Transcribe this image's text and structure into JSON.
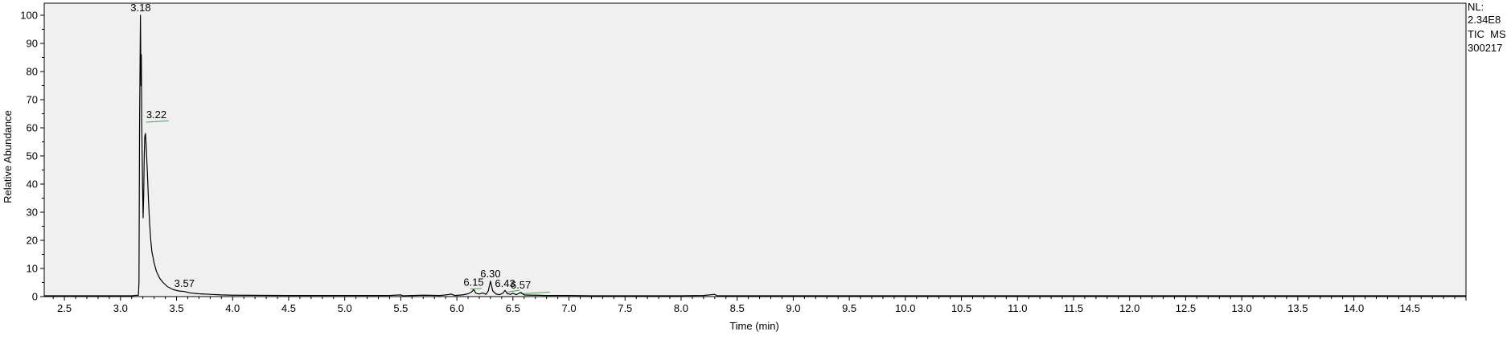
{
  "chart_data": {
    "type": "line",
    "xlabel": "Time (min)",
    "ylabel": "Relative Abundance",
    "xlim": [
      2.32,
      15.0
    ],
    "ylim": [
      0,
      100
    ],
    "x_ticks": [
      "2.5",
      "3.0",
      "3.5",
      "4.0",
      "4.5",
      "5.0",
      "5.5",
      "6.0",
      "6.5",
      "7.0",
      "7.5",
      "8.0",
      "8.5",
      "9.0",
      "9.5",
      "10.0",
      "10.5",
      "11.0",
      "11.5",
      "12.0",
      "12.5",
      "13.0",
      "13.5",
      "14.0",
      "14.5"
    ],
    "y_ticks": [
      "0",
      "10",
      "20",
      "30",
      "40",
      "50",
      "60",
      "70",
      "80",
      "90",
      "100"
    ],
    "info": [
      "NL:",
      "2.34E8",
      "TIC  MS",
      "300217"
    ],
    "peak_labels": [
      {
        "text": "3.18",
        "x": 3.18,
        "y": 100
      },
      {
        "text": "3.22",
        "x": 3.22,
        "y": 62
      },
      {
        "text": "3.57",
        "x": 3.57,
        "y": 2
      },
      {
        "text": "6.15",
        "x": 6.15,
        "y": 2.5
      },
      {
        "text": "6.30",
        "x": 6.3,
        "y": 5.5
      },
      {
        "text": "6.43",
        "x": 6.43,
        "y": 2
      },
      {
        "text": "6.57",
        "x": 6.57,
        "y": 1.5
      }
    ],
    "baseline_segments": [
      {
        "x0": 3.23,
        "x1": 3.43,
        "y0": 62,
        "y1": 62.5
      },
      {
        "x0": 6.12,
        "x1": 6.22,
        "y0": 2.7,
        "y1": 2.9
      },
      {
        "x0": 6.45,
        "x1": 6.56,
        "y0": 1.6,
        "y1": 2.3
      },
      {
        "x0": 6.57,
        "x1": 6.83,
        "y0": 1.0,
        "y1": 1.6
      }
    ],
    "series": [
      {
        "color": "#000000",
        "points": [
          [
            2.32,
            0.3
          ],
          [
            3.1,
            0.3
          ],
          [
            3.16,
            0.5
          ],
          [
            3.165,
            5
          ],
          [
            3.17,
            60
          ],
          [
            3.178,
            100
          ],
          [
            3.183,
            75
          ],
          [
            3.186,
            86
          ],
          [
            3.19,
            60
          ],
          [
            3.197,
            40
          ],
          [
            3.202,
            28
          ],
          [
            3.207,
            36
          ],
          [
            3.212,
            50
          ],
          [
            3.217,
            57
          ],
          [
            3.223,
            58
          ],
          [
            3.23,
            53
          ],
          [
            3.24,
            44
          ],
          [
            3.25,
            34
          ],
          [
            3.26,
            26
          ],
          [
            3.27,
            20
          ],
          [
            3.28,
            16
          ],
          [
            3.3,
            12
          ],
          [
            3.32,
            9
          ],
          [
            3.35,
            6.5
          ],
          [
            3.38,
            5
          ],
          [
            3.42,
            3.5
          ],
          [
            3.47,
            2.5
          ],
          [
            3.52,
            2
          ],
          [
            3.57,
            1.8
          ],
          [
            3.62,
            1.3
          ],
          [
            3.7,
            1
          ],
          [
            3.8,
            0.8
          ],
          [
            3.9,
            0.6
          ],
          [
            4.0,
            0.5
          ],
          [
            4.5,
            0.4
          ],
          [
            5.0,
            0.4
          ],
          [
            5.4,
            0.4
          ],
          [
            5.5,
            0.6
          ],
          [
            5.52,
            0.3
          ],
          [
            5.6,
            0.4
          ],
          [
            5.7,
            0.5
          ],
          [
            5.85,
            0.4
          ],
          [
            5.92,
            0.7
          ],
          [
            5.95,
            0.9
          ],
          [
            5.98,
            0.4
          ],
          [
            6.05,
            0.6
          ],
          [
            6.1,
            1.0
          ],
          [
            6.13,
            1.6
          ],
          [
            6.15,
            2.5
          ],
          [
            6.17,
            1.2
          ],
          [
            6.2,
            0.9
          ],
          [
            6.23,
            1.3
          ],
          [
            6.26,
            0.8
          ],
          [
            6.28,
            2.0
          ],
          [
            6.3,
            5.5
          ],
          [
            6.32,
            2.0
          ],
          [
            6.35,
            0.9
          ],
          [
            6.38,
            0.7
          ],
          [
            6.41,
            1.2
          ],
          [
            6.43,
            2.2
          ],
          [
            6.45,
            1.0
          ],
          [
            6.48,
            0.8
          ],
          [
            6.5,
            1.2
          ],
          [
            6.53,
            0.7
          ],
          [
            6.57,
            1.5
          ],
          [
            6.6,
            0.6
          ],
          [
            6.65,
            0.5
          ],
          [
            6.7,
            0.5
          ],
          [
            6.8,
            0.4
          ],
          [
            7.0,
            0.4
          ],
          [
            7.2,
            0.3
          ],
          [
            7.5,
            0.3
          ],
          [
            8.0,
            0.3
          ],
          [
            8.2,
            0.4
          ],
          [
            8.3,
            0.8
          ],
          [
            8.32,
            0.3
          ],
          [
            8.4,
            0.3
          ],
          [
            9.0,
            0.3
          ],
          [
            10.0,
            0.3
          ],
          [
            11.0,
            0.3
          ],
          [
            12.0,
            0.3
          ],
          [
            13.0,
            0.3
          ],
          [
            14.0,
            0.3
          ],
          [
            15.0,
            0.3
          ]
        ]
      }
    ]
  }
}
